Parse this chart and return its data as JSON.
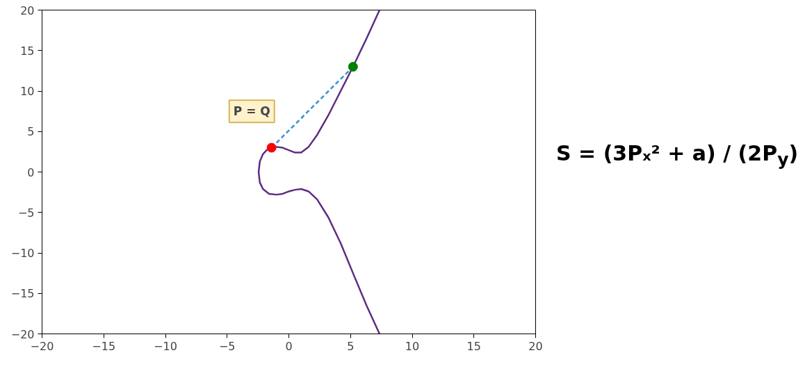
{
  "chart_data": {
    "type": "line",
    "xlim": [
      -20,
      20
    ],
    "ylim": [
      -20,
      20
    ],
    "xticks": [
      {
        "value": -20,
        "label": "−20"
      },
      {
        "value": -15,
        "label": "−15"
      },
      {
        "value": -10,
        "label": "−10"
      },
      {
        "value": -5,
        "label": "−5"
      },
      0,
      5,
      10,
      15,
      20
    ],
    "yticks": [
      {
        "value": -20,
        "label": "−20"
      },
      {
        "value": -15,
        "label": "−15"
      },
      {
        "value": -10,
        "label": "−10"
      },
      {
        "value": -5,
        "label": "−5"
      },
      0,
      5,
      10,
      15,
      20
    ],
    "grid": false,
    "series": [
      {
        "color": "#5c2d82",
        "line_style": "solid",
        "x": [
          7.35,
          6.3,
          5.2,
          4.2,
          3.2,
          2.3,
          1.6,
          1.0,
          0.5,
          0,
          -0.5,
          -1.0,
          -1.4,
          -1.8,
          -2.1,
          -2.35,
          -2.45,
          -2.35,
          -2.1,
          -1.6,
          -1.0,
          -0.5,
          0,
          0.5,
          1.0,
          1.6,
          2.3,
          3.2,
          4.2,
          5.2,
          6.3,
          7.35
        ],
        "values": [
          20,
          16.5,
          13,
          10,
          7,
          4.6,
          3.1,
          2.4,
          2.4,
          2.7,
          3.0,
          3.1,
          3.0,
          2.7,
          2.2,
          1.3,
          0,
          -1.3,
          -2.1,
          -2.7,
          -2.8,
          -2.7,
          -2.4,
          -2.2,
          -2.1,
          -2.4,
          -3.4,
          -5.6,
          -8.8,
          -12.5,
          -16.5,
          -20
        ]
      },
      {
        "type": "line",
        "color": "#3a8fd0",
        "line_style": "dashed",
        "x": [
          -1.4,
          5.2
        ],
        "values": [
          3.0,
          13
        ]
      },
      {
        "type": "scatter",
        "color": "#ff0000",
        "marker": "circle",
        "x": [
          -1.4
        ],
        "values": [
          3.0
        ]
      },
      {
        "type": "scatter",
        "color": "#008000",
        "marker": "circle",
        "x": [
          5.2
        ],
        "values": [
          13
        ]
      }
    ],
    "annotations": [
      "P = Q",
      "S = (3Pₓ² + a) / (2P$_{y}$)"
    ]
  }
}
